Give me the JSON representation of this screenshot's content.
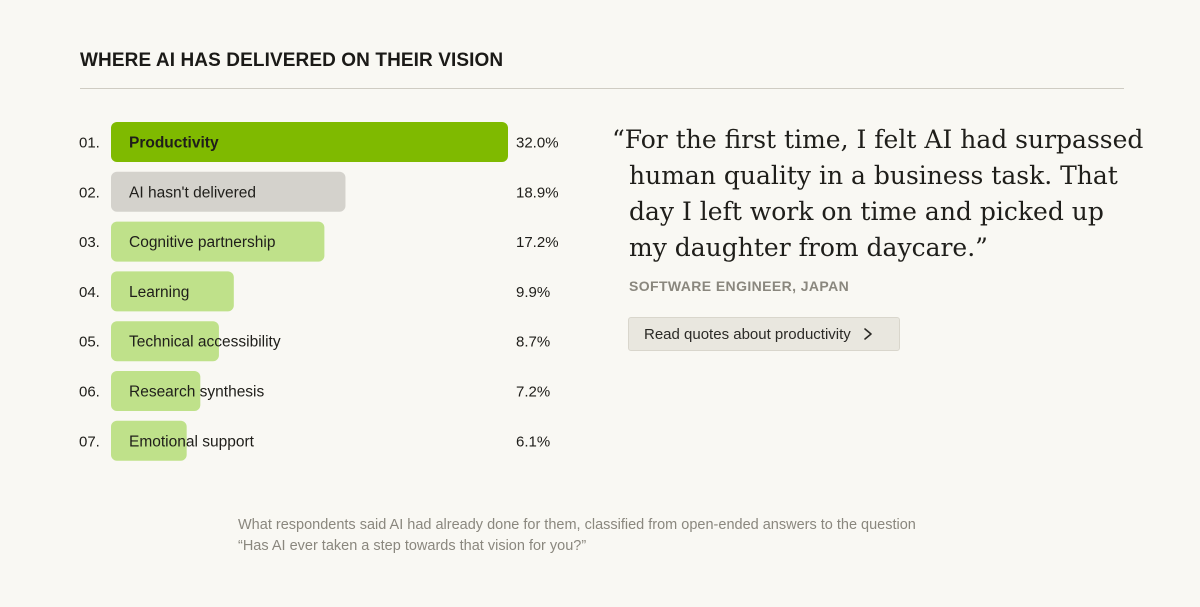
{
  "heading": "WHERE AI HAS DELIVERED ON THEIR VISION",
  "chart_data": {
    "type": "bar",
    "orientation": "horizontal",
    "categories": [
      "Productivity",
      "AI hasn't delivered",
      "Cognitive partnership",
      "Learning",
      "Technical accessibility",
      "Research synthesis",
      "Emotional support"
    ],
    "ranks": [
      "01.",
      "02.",
      "03.",
      "04.",
      "05.",
      "06.",
      "07."
    ],
    "values": [
      32.0,
      18.9,
      17.2,
      9.9,
      8.7,
      7.2,
      6.1
    ],
    "value_labels": [
      "32.0%",
      "18.9%",
      "17.2%",
      "9.9%",
      "8.7%",
      "7.2%",
      "6.1%"
    ],
    "unit": "%",
    "xlim": [
      0,
      32.0
    ],
    "grid": false,
    "colors": {
      "highlight": "#7fba00",
      "neutral": "#d4d2cc",
      "default": "#bfe18a"
    },
    "bar_styles": [
      "highlight",
      "neutral",
      "default",
      "default",
      "default",
      "default",
      "default"
    ]
  },
  "quote": {
    "text": "“For the first time, I felt AI had surpassed human quality in a business task. That day I left work on time and picked up my daughter from daycare.”",
    "attribution": "SOFTWARE ENGINEER, JAPAN"
  },
  "cta": {
    "label": "Read quotes about productivity",
    "icon": "chevron-right-icon"
  },
  "caption": "What respondents said AI had already done for them, classified from open-ended answers to the question “Has AI ever taken a step towards that vision for you?”"
}
